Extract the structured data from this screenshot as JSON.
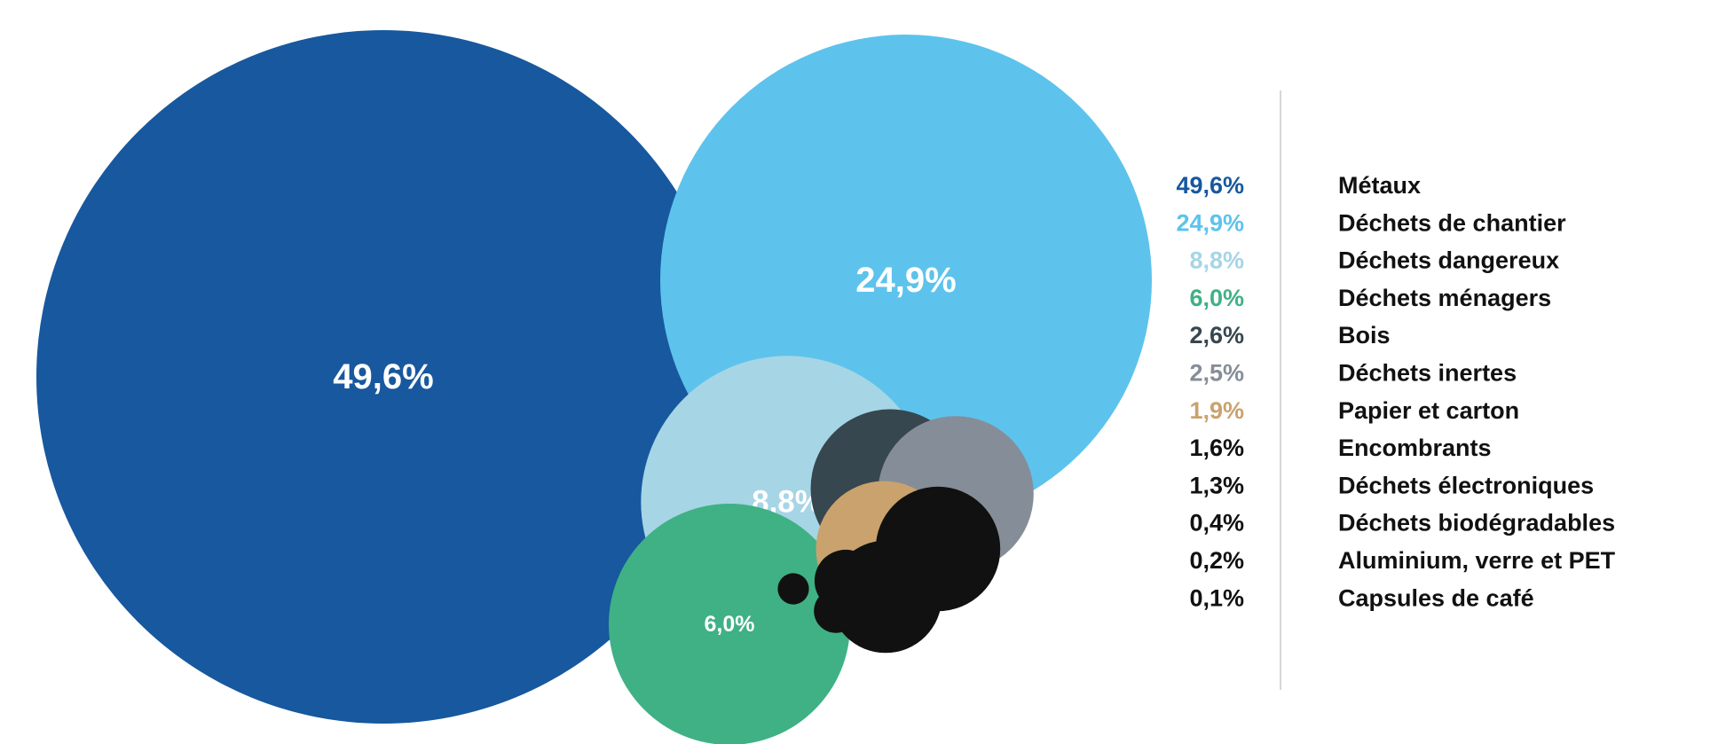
{
  "chart_data": {
    "type": "bubble",
    "series": [
      {
        "name": "Métaux",
        "value": 49.6,
        "label": "49,6%",
        "color": "#17589e",
        "show_in_bubble": true
      },
      {
        "name": "Déchets de chantier",
        "value": 24.9,
        "label": "24,9%",
        "color": "#5dc3ec",
        "show_in_bubble": true
      },
      {
        "name": "Déchets dangereux",
        "value": 8.8,
        "label": "8,8%",
        "color": "#a6d5e5",
        "show_in_bubble": true
      },
      {
        "name": "Déchets ménagers",
        "value": 6.0,
        "label": "6,0%",
        "color": "#3fb185",
        "show_in_bubble": true
      },
      {
        "name": "Bois",
        "value": 2.6,
        "label": "2,6%",
        "color": "#37474f",
        "show_in_bubble": false
      },
      {
        "name": "Déchets inertes",
        "value": 2.5,
        "label": "2,5%",
        "color": "#858e98",
        "show_in_bubble": false
      },
      {
        "name": "Papier et carton",
        "value": 1.9,
        "label": "1,9%",
        "color": "#c9a26e",
        "show_in_bubble": false
      },
      {
        "name": "Encombrants",
        "value": 1.6,
        "label": "1,6%",
        "color": "#111111",
        "show_in_bubble": false
      },
      {
        "name": "Déchets électroniques",
        "value": 1.3,
        "label": "1,3%",
        "color": "#111111",
        "show_in_bubble": false
      },
      {
        "name": "Déchets biodégradables",
        "value": 0.4,
        "label": "0,4%",
        "color": "#111111",
        "show_in_bubble": false
      },
      {
        "name": "Aluminium, verre et PET",
        "value": 0.2,
        "label": "0,2%",
        "color": "#111111",
        "show_in_bubble": false
      },
      {
        "name": "Capsules de café",
        "value": 0.1,
        "label": "0,1%",
        "color": "#111111",
        "show_in_bubble": false
      }
    ],
    "legend_position": "right"
  }
}
